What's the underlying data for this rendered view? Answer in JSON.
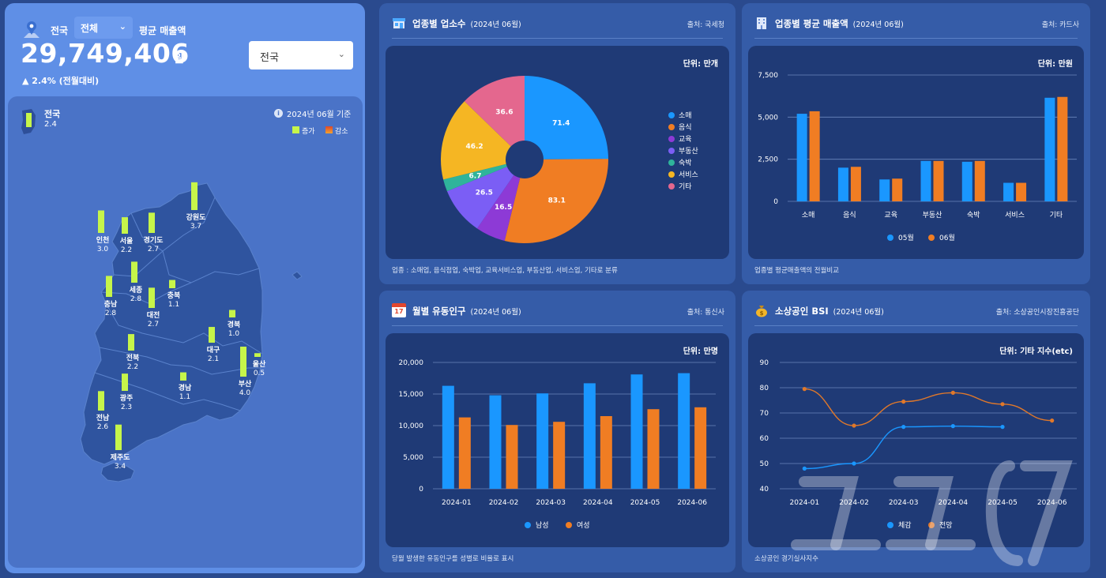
{
  "header": {
    "region_label": "전국",
    "business_select": "전체",
    "avg_sales_label": "평균 매출액",
    "total_value": "29,749,406",
    "total_unit": "원",
    "change_text": "▲ 2.4% (전월대비)",
    "region_select": "전국"
  },
  "map": {
    "national_name": "전국",
    "national_value": "2.4",
    "base_date": "2024년 06월 기준",
    "legend_increase": "증가",
    "legend_decrease": "감소",
    "colors": {
      "increase": "#c6f54a",
      "decrease": "#e0482a"
    },
    "regions": [
      {
        "name": "인천",
        "value": 3.0
      },
      {
        "name": "서울",
        "value": 2.2
      },
      {
        "name": "경기도",
        "value": 2.7
      },
      {
        "name": "강원도",
        "value": 3.7
      },
      {
        "name": "충북",
        "value": 1.1
      },
      {
        "name": "세종",
        "value": 2.8
      },
      {
        "name": "충남",
        "value": 2.8
      },
      {
        "name": "대전",
        "value": 2.7
      },
      {
        "name": "경북",
        "value": 1.0
      },
      {
        "name": "대구",
        "value": 2.1
      },
      {
        "name": "전북",
        "value": 2.2
      },
      {
        "name": "경남",
        "value": 1.1
      },
      {
        "name": "울산",
        "value": 0.5
      },
      {
        "name": "부산",
        "value": 4.0
      },
      {
        "name": "광주",
        "value": 2.3
      },
      {
        "name": "전남",
        "value": 2.6
      },
      {
        "name": "제주도",
        "value": 3.4
      }
    ]
  },
  "cards": {
    "business_count": {
      "title": "업종별 업소수",
      "date": "(2024년 06월)",
      "source": "출처: 국세청",
      "unit": "단위: 만개",
      "note": "업종 : 소매업, 음식점업, 숙박업, 교육서비스업, 부동산업, 서비스업, 기타로 분류"
    },
    "avg_sales": {
      "title": "업종별 평균 매출액",
      "date": "(2024년 06월)",
      "source": "출처: 카드사",
      "unit": "단위: 만원",
      "note": "업종별 평균매출액의 전월비교"
    },
    "floating_pop": {
      "title": "월별 유동인구",
      "date": "(2024년 06월)",
      "source": "출처: 통신사",
      "unit": "단위: 만명",
      "note": "당월 발생한 유동인구를 성별로 비율로 표시",
      "icon_text": "17"
    },
    "bsi": {
      "title": "소상공인 BSI",
      "date": "(2024년 06월)",
      "source": "출처: 소상공인시장진흥공단",
      "unit": "단위: 기타 지수(etc)",
      "note": "소상공인 경기실사지수"
    }
  },
  "chart_data": [
    {
      "type": "pie",
      "title": "업종별 업소수",
      "categories": [
        "소매",
        "음식",
        "교육",
        "부동산",
        "숙박",
        "서비스",
        "기타"
      ],
      "values": [
        71.4,
        83.1,
        16.5,
        26.5,
        6.7,
        46.2,
        36.6
      ],
      "colors": [
        "#1a97ff",
        "#f07d23",
        "#8d3ad6",
        "#7b5ef5",
        "#2fb49b",
        "#f5b623",
        "#e4678e"
      ]
    },
    {
      "type": "bar",
      "title": "업종별 평균 매출액",
      "categories": [
        "소매",
        "음식",
        "교육",
        "부동산",
        "숙박",
        "서비스",
        "기타"
      ],
      "series": [
        {
          "name": "05월",
          "values": [
            5200,
            2000,
            1300,
            2400,
            2350,
            1100,
            6150
          ],
          "color": "#1a97ff"
        },
        {
          "name": "06월",
          "values": [
            5350,
            2050,
            1350,
            2400,
            2400,
            1100,
            6200
          ],
          "color": "#f07d23"
        }
      ],
      "yticks": [
        "7,500",
        "5,000",
        "2,500",
        "0"
      ],
      "ylim": [
        0,
        7500
      ]
    },
    {
      "type": "bar",
      "title": "월별 유동인구",
      "categories": [
        "2024-01",
        "2024-02",
        "2024-03",
        "2024-04",
        "2024-05",
        "2024-06"
      ],
      "series": [
        {
          "name": "남성",
          "values": [
            16300,
            14800,
            15100,
            16700,
            18100,
            18300
          ],
          "color": "#1a97ff"
        },
        {
          "name": "여성",
          "values": [
            11300,
            10100,
            10600,
            11500,
            12600,
            12900
          ],
          "color": "#f07d23"
        }
      ],
      "yticks": [
        "20,000",
        "15,000",
        "10,000",
        "5,000",
        "0"
      ],
      "ylim": [
        0,
        20000
      ]
    },
    {
      "type": "line",
      "title": "소상공인 BSI",
      "categories": [
        "2024-01",
        "2024-02",
        "2024-03",
        "2024-04",
        "2024-05",
        "2024-06"
      ],
      "series": [
        {
          "name": "체감",
          "values": [
            48,
            50,
            64.5,
            64.8,
            64.5,
            null
          ],
          "color": "#1a97ff"
        },
        {
          "name": "전망",
          "values": [
            79.5,
            65,
            74.5,
            78,
            73.5,
            67
          ],
          "color": "#e0782a"
        }
      ],
      "yticks": [
        "90",
        "80",
        "70",
        "60",
        "50",
        "40"
      ],
      "ylim": [
        40,
        90
      ]
    }
  ]
}
